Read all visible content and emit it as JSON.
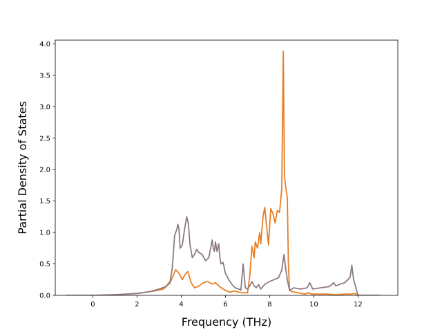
{
  "chart_data": {
    "type": "line",
    "title": "",
    "xlabel": "Frequency (THz)",
    "ylabel": "Partial Density of States",
    "xlim": [
      -1.7,
      13.8
    ],
    "ylim": [
      0.0,
      4.06
    ],
    "xticks": [
      0,
      2,
      4,
      6,
      8,
      10,
      12
    ],
    "xtick_labels": [
      "0",
      "2",
      "4",
      "6",
      "8",
      "10",
      "12"
    ],
    "yticks": [
      0.0,
      0.5,
      1.0,
      1.5,
      2.0,
      2.5,
      3.0,
      3.5,
      4.0
    ],
    "ytick_labels": [
      "0.0",
      "0.5",
      "1.0",
      "1.5",
      "2.0",
      "2.5",
      "3.0",
      "3.5",
      "4.0"
    ],
    "grid": false,
    "legend": "none",
    "series": [
      {
        "color": "#e87d24",
        "x": [
          -1.2,
          0.0,
          1.0,
          2.0,
          2.8,
          3.2,
          3.5,
          3.65,
          3.75,
          3.9,
          4.05,
          4.15,
          4.3,
          4.45,
          4.6,
          4.8,
          5.0,
          5.2,
          5.4,
          5.55,
          5.7,
          5.85,
          6.0,
          6.2,
          6.4,
          6.6,
          6.8,
          7.0,
          7.1,
          7.2,
          7.3,
          7.35,
          7.45,
          7.55,
          7.6,
          7.7,
          7.78,
          7.85,
          7.95,
          8.05,
          8.15,
          8.25,
          8.35,
          8.45,
          8.55,
          8.62,
          8.67,
          8.72,
          8.8,
          8.85,
          8.9,
          9.0,
          9.3,
          9.6,
          9.75,
          9.9,
          10.2,
          10.6,
          11.0,
          11.4,
          11.7,
          11.85,
          12.0,
          13.0
        ],
        "values": [
          0.0,
          0.0,
          0.01,
          0.03,
          0.07,
          0.1,
          0.2,
          0.33,
          0.41,
          0.35,
          0.25,
          0.32,
          0.38,
          0.2,
          0.12,
          0.15,
          0.2,
          0.22,
          0.18,
          0.2,
          0.15,
          0.11,
          0.08,
          0.05,
          0.07,
          0.05,
          0.04,
          0.04,
          0.3,
          0.78,
          0.6,
          0.85,
          0.75,
          1.0,
          0.82,
          1.25,
          1.4,
          1.15,
          0.8,
          1.38,
          1.3,
          1.15,
          1.35,
          1.32,
          1.7,
          3.88,
          1.9,
          1.75,
          1.55,
          0.5,
          0.08,
          0.06,
          0.04,
          0.02,
          0.04,
          0.02,
          0.02,
          0.02,
          0.01,
          0.02,
          0.02,
          0.03,
          0.0,
          0.0
        ]
      },
      {
        "color": "#8c7a80",
        "x": [
          -1.2,
          0.0,
          1.0,
          2.0,
          2.6,
          3.0,
          3.3,
          3.5,
          3.6,
          3.7,
          3.8,
          3.85,
          3.9,
          3.95,
          4.05,
          4.15,
          4.25,
          4.32,
          4.4,
          4.5,
          4.6,
          4.7,
          4.8,
          4.95,
          5.1,
          5.25,
          5.4,
          5.45,
          5.5,
          5.55,
          5.62,
          5.7,
          5.75,
          5.8,
          5.9,
          6.0,
          6.15,
          6.3,
          6.45,
          6.6,
          6.7,
          6.8,
          6.9,
          7.0,
          7.1,
          7.2,
          7.3,
          7.4,
          7.5,
          7.6,
          7.8,
          8.0,
          8.2,
          8.4,
          8.55,
          8.65,
          8.72,
          8.8,
          8.9,
          9.1,
          9.4,
          9.7,
          9.82,
          9.95,
          10.3,
          10.7,
          10.9,
          11.0,
          11.2,
          11.4,
          11.55,
          11.65,
          11.72,
          11.8,
          12.0,
          13.0
        ],
        "values": [
          0.0,
          0.0,
          0.01,
          0.03,
          0.06,
          0.1,
          0.14,
          0.22,
          0.45,
          0.95,
          1.05,
          1.13,
          1.05,
          0.75,
          0.8,
          1.05,
          1.25,
          1.15,
          0.8,
          0.6,
          0.65,
          0.73,
          0.68,
          0.65,
          0.55,
          0.6,
          0.88,
          0.75,
          0.7,
          0.85,
          0.7,
          0.82,
          0.6,
          0.5,
          0.52,
          0.35,
          0.25,
          0.17,
          0.12,
          0.1,
          0.08,
          0.5,
          0.12,
          0.1,
          0.15,
          0.22,
          0.15,
          0.12,
          0.17,
          0.1,
          0.18,
          0.22,
          0.25,
          0.28,
          0.4,
          0.65,
          0.45,
          0.25,
          0.08,
          0.12,
          0.1,
          0.12,
          0.2,
          0.1,
          0.12,
          0.14,
          0.2,
          0.15,
          0.18,
          0.2,
          0.25,
          0.3,
          0.48,
          0.25,
          0.0,
          0.0
        ]
      }
    ]
  }
}
